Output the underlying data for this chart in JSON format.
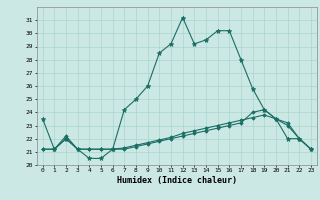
{
  "xlabel": "Humidex (Indice chaleur)",
  "background_color": "#cce8e4",
  "grid_color": "#aad4ce",
  "line_color": "#1a6e64",
  "ylim": [
    20,
    32
  ],
  "xlim": [
    -0.5,
    23.5
  ],
  "yticks": [
    20,
    21,
    22,
    23,
    24,
    25,
    26,
    27,
    28,
    29,
    30,
    31
  ],
  "xticks": [
    0,
    1,
    2,
    3,
    4,
    5,
    6,
    7,
    8,
    9,
    10,
    11,
    12,
    13,
    14,
    15,
    16,
    17,
    18,
    19,
    20,
    21,
    22,
    23
  ],
  "line1_x": [
    0,
    1,
    2,
    3,
    4,
    5,
    6,
    7,
    8,
    9,
    10,
    11,
    12,
    13,
    14,
    15,
    16,
    17,
    18,
    19,
    20,
    21,
    22,
    23
  ],
  "line1_y": [
    23.5,
    21.2,
    22.0,
    21.2,
    20.5,
    20.5,
    21.2,
    24.2,
    25.0,
    26.0,
    28.5,
    29.2,
    31.2,
    29.2,
    29.5,
    30.2,
    30.2,
    28.0,
    25.8,
    24.2,
    23.5,
    22.0,
    22.0,
    21.2
  ],
  "line2_x": [
    0,
    1,
    2,
    3,
    4,
    5,
    6,
    7,
    8,
    9,
    10,
    11,
    12,
    13,
    14,
    15,
    16,
    17,
    18,
    19,
    20,
    21,
    22,
    23
  ],
  "line2_y": [
    21.2,
    21.2,
    22.2,
    21.2,
    21.2,
    21.2,
    21.2,
    21.3,
    21.5,
    21.7,
    21.9,
    22.1,
    22.4,
    22.6,
    22.8,
    23.0,
    23.2,
    23.4,
    23.6,
    23.8,
    23.5,
    23.2,
    22.0,
    21.2
  ],
  "line3_x": [
    0,
    1,
    2,
    3,
    4,
    5,
    6,
    7,
    8,
    9,
    10,
    11,
    12,
    13,
    14,
    15,
    16,
    17,
    18,
    19,
    20,
    21,
    22,
    23
  ],
  "line3_y": [
    21.2,
    21.2,
    22.0,
    21.2,
    21.2,
    21.2,
    21.2,
    21.2,
    21.4,
    21.6,
    21.8,
    22.0,
    22.2,
    22.4,
    22.6,
    22.8,
    23.0,
    23.2,
    24.0,
    24.2,
    23.5,
    23.0,
    22.0,
    21.2
  ]
}
